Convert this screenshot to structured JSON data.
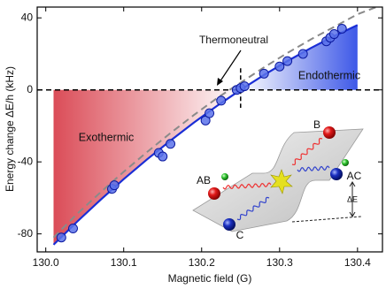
{
  "chart_data": {
    "type": "line",
    "x_label": "Magnetic field (G)",
    "y_label": "Energy change ΔE/h (kHz)",
    "xlim": [
      129.989,
      130.432
    ],
    "ylim": [
      -90,
      46
    ],
    "xticks": [
      {
        "value": 130.0,
        "label": "130.0"
      },
      130.1,
      130.2,
      130.3,
      130.4
    ],
    "yticks": [
      -80,
      -40,
      0,
      40
    ],
    "reference_lines": {
      "x": 130.25,
      "y": 0
    },
    "fill_below_color": "#d9434f",
    "fill_above_color": "#3450e6",
    "series": [
      {
        "style": "solid",
        "color": "#1a2ed6",
        "x": [
          130.01,
          130.04,
          130.07,
          130.1,
          130.13,
          130.16,
          130.19,
          130.22,
          130.25,
          130.28,
          130.31,
          130.34,
          130.37,
          130.4
        ],
        "values": [
          -86,
          -73.3,
          -61.2,
          -49.6,
          -38.6,
          -28.2,
          -18.2,
          -8.8,
          0,
          8.3,
          16.0,
          23.2,
          29.9,
          36
        ]
      },
      {
        "style": "dashed",
        "color": "#8a8a8a",
        "x": [
          130.01,
          130.04,
          130.07,
          130.1,
          130.13,
          130.16,
          130.19,
          130.22,
          130.25,
          130.28,
          130.31,
          130.34,
          130.37,
          130.4,
          130.43
        ],
        "values": [
          -82,
          -69,
          -57,
          -45.5,
          -34.5,
          -24,
          -14,
          -4.5,
          4,
          12.5,
          20.5,
          28,
          35,
          42,
          47
        ]
      },
      {
        "style": "points",
        "color": "#5a72ea",
        "x": [
          130.02,
          130.035,
          130.085,
          130.088,
          130.145,
          130.15,
          130.16,
          130.205,
          130.21,
          130.225,
          130.245,
          130.25,
          130.255,
          130.28,
          130.3,
          130.31,
          130.33,
          130.36,
          130.365,
          130.37,
          130.38
        ],
        "values": [
          -82,
          -77,
          -55,
          -53,
          -35,
          -37,
          -30,
          -17,
          -13,
          -6,
          0,
          1,
          2,
          9,
          13,
          16,
          20,
          27,
          29,
          31,
          34
        ]
      }
    ],
    "annotations": {
      "exothermic": "Exothermic",
      "endothermic": "Endothermic",
      "thermoneutral": "Thermoneutral"
    },
    "inset": {
      "labels": [
        "AB",
        "B",
        "C",
        "AC",
        "ΔE"
      ]
    }
  }
}
